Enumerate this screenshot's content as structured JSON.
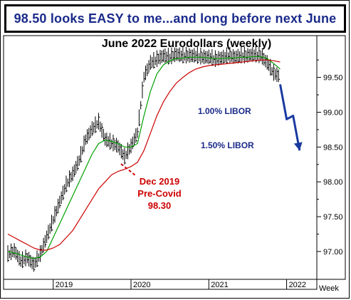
{
  "headline": "98.50 looks EASY to me...and long before next June",
  "chart_data": {
    "type": "line",
    "title": "June 2022 Eurodollars (weekly)",
    "xlabel": "Week",
    "ylabel": "",
    "ylim": [
      96.6,
      100.1
    ],
    "x_ticks": [
      "2019",
      "2020",
      "2021",
      "2022"
    ],
    "y_ticks": [
      "97.00",
      "97.50",
      "98.00",
      "98.50",
      "99.00",
      "99.50"
    ],
    "x": [
      "2018-06",
      "2018-07",
      "2018-08",
      "2018-09",
      "2018-10",
      "2018-11",
      "2018-12",
      "2019-01",
      "2019-02",
      "2019-03",
      "2019-04",
      "2019-05",
      "2019-06",
      "2019-07",
      "2019-08",
      "2019-09",
      "2019-10",
      "2019-11",
      "2019-12",
      "2020-01",
      "2020-02",
      "2020-03",
      "2020-04",
      "2020-05",
      "2020-06",
      "2020-07",
      "2020-08",
      "2020-09",
      "2020-10",
      "2020-11",
      "2020-12",
      "2021-01",
      "2021-02",
      "2021-03",
      "2021-04",
      "2021-05",
      "2021-06",
      "2021-07",
      "2021-08",
      "2021-09",
      "2021-10",
      "2021-11",
      "2021-12"
    ],
    "series": [
      {
        "values": [
          96.95,
          97.0,
          96.85,
          96.9,
          96.8,
          96.95,
          97.2,
          97.45,
          97.7,
          97.95,
          98.1,
          98.3,
          98.6,
          98.75,
          98.85,
          98.6,
          98.55,
          98.5,
          98.35,
          98.5,
          98.7,
          99.5,
          99.7,
          99.75,
          99.8,
          99.78,
          99.82,
          99.8,
          99.8,
          99.8,
          99.78,
          99.78,
          99.75,
          99.77,
          99.8,
          99.78,
          99.8,
          99.8,
          99.82,
          99.8,
          99.7,
          99.55,
          99.5
        ],
        "color": "#000000"
      },
      {
        "values": [
          97.0,
          96.98,
          96.95,
          96.92,
          96.9,
          96.92,
          97.0,
          97.2,
          97.4,
          97.6,
          97.8,
          98.0,
          98.2,
          98.4,
          98.55,
          98.6,
          98.58,
          98.55,
          98.5,
          98.5,
          98.55,
          98.95,
          99.3,
          99.55,
          99.68,
          99.74,
          99.77,
          99.78,
          99.79,
          99.79,
          99.79,
          99.78,
          99.77,
          99.77,
          99.78,
          99.78,
          99.79,
          99.79,
          99.8,
          99.8,
          99.77,
          99.7,
          99.62
        ],
        "color": "#00a000"
      },
      {
        "values": [
          97.25,
          97.2,
          97.15,
          97.1,
          97.05,
          97.02,
          97.02,
          97.05,
          97.1,
          97.2,
          97.3,
          97.45,
          97.6,
          97.75,
          97.9,
          98.0,
          98.1,
          98.15,
          98.18,
          98.22,
          98.28,
          98.45,
          98.7,
          98.95,
          99.15,
          99.3,
          99.42,
          99.5,
          99.57,
          99.62,
          99.65,
          99.67,
          99.68,
          99.69,
          99.7,
          99.71,
          99.72,
          99.73,
          99.74,
          99.75,
          99.75,
          99.74,
          99.72
        ],
        "color": "#cc0000"
      }
    ],
    "annotations": {
      "libor1": "1.00% LIBOR",
      "libor2": "1.50% LIBOR",
      "covid_line1": "Dec 2019",
      "covid_line2": "Pre-Covid",
      "covid_line3": "98.30"
    },
    "projection": {
      "x": [
        "2021-12",
        "2022-01",
        "2022-02",
        "2022-03"
      ],
      "values": [
        99.4,
        98.9,
        98.95,
        98.45
      ],
      "color": "#1a3aa0"
    },
    "grid": false,
    "legend": "none"
  }
}
